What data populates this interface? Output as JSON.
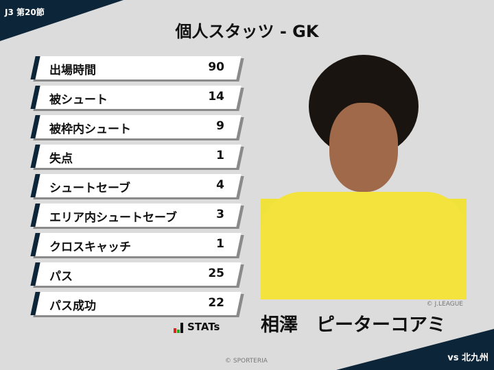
{
  "header": {
    "round": "J3 第20節",
    "title": "個人スタッツ - GK",
    "opponent": "vs 北九州"
  },
  "stats": [
    {
      "label": "出場時間",
      "value": "90"
    },
    {
      "label": "被シュート",
      "value": "14"
    },
    {
      "label": "被枠内シュート",
      "value": "9"
    },
    {
      "label": "失点",
      "value": "1"
    },
    {
      "label": "シュートセーブ",
      "value": "4"
    },
    {
      "label": "エリア内シュートセーブ",
      "value": "3"
    },
    {
      "label": "クロスキャッチ",
      "value": "1"
    },
    {
      "label": "パス",
      "value": "25"
    },
    {
      "label": "パス成功",
      "value": "22"
    }
  ],
  "brand": {
    "logo_text": "STATs"
  },
  "player": {
    "name": "相澤　ピーターコアミ",
    "photo_credit": "© J.LEAGUE"
  },
  "footer": {
    "copyright": "© SPORTERIA"
  },
  "colors": {
    "navy": "#0d2538",
    "background": "#dcdcdc"
  }
}
